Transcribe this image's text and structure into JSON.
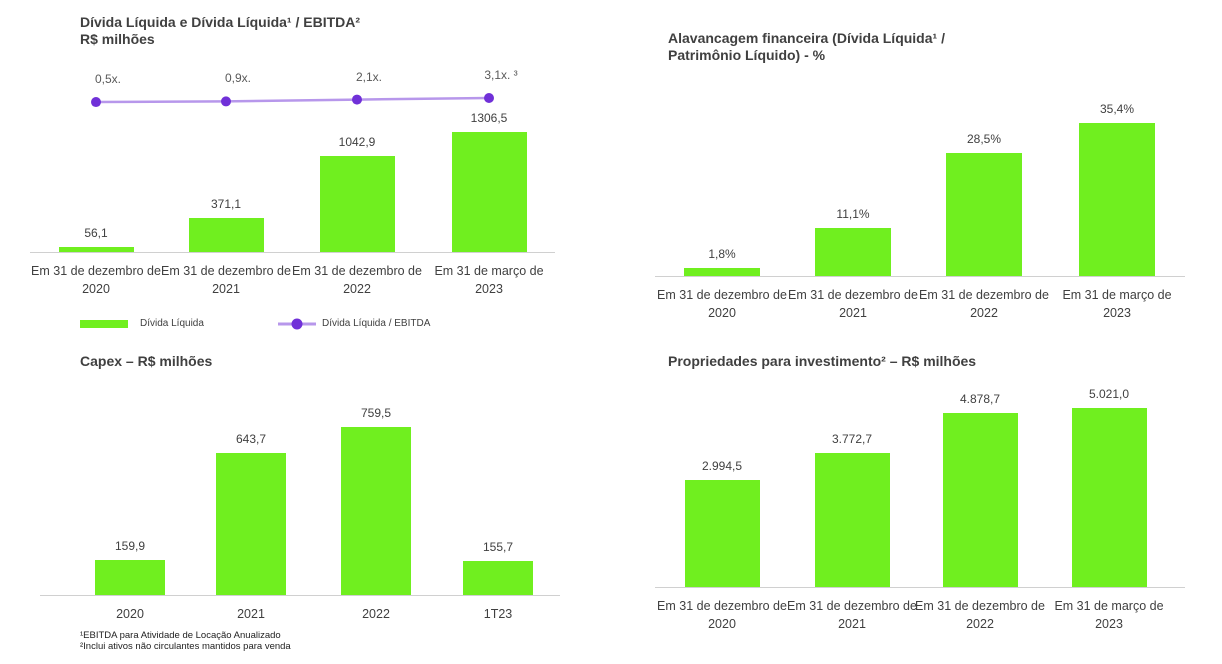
{
  "chart_data": [
    {
      "type": "combo",
      "title": "Dívida Líquida e Dívida Líquida¹ / EBITDA²",
      "subtitle": "R$ milhões",
      "categories": [
        "Em 31 de dezembro de 2020",
        "Em 31 de dezembro de 2021",
        "Em 31 de dezembro de 2022",
        "Em 31 de março de 2023"
      ],
      "series": [
        {
          "name": "Dívida Líquida",
          "color": "#70ef1f",
          "values": [
            56.1,
            371.1,
            1042.9,
            1306.5
          ],
          "value_labels": [
            "56,1",
            "371,1",
            "1042,9",
            "1306,5"
          ]
        },
        {
          "name": "Dívida Líquida / EBITDA",
          "color": "#7030d8",
          "axis": "y2",
          "values": [
            0.5,
            0.9,
            2.1,
            3.1
          ],
          "value_labels": [
            "0,5x.",
            "0,9x.",
            "2,1x.",
            "3,1x. ³"
          ]
        }
      ],
      "ylim": [
        0,
        1400
      ],
      "y2lim": [
        0,
        40
      ],
      "legend": "bottom"
    },
    {
      "type": "bar",
      "title": "Alavancagem financeira (Dívida Líquida¹ / Patrimônio Líquido) - %",
      "categories": [
        "Em 31 de dezembro de 2020",
        "Em 31 de dezembro de 2021",
        "Em 31 de dezembro de 2022",
        "Em 31 de março de 2023"
      ],
      "values": [
        1.8,
        11.1,
        28.5,
        35.4
      ],
      "value_labels": [
        "1,8%",
        "11,1%",
        "28,5%",
        "35,4%"
      ],
      "color": "#70ef1f",
      "ylim": [
        0,
        40
      ]
    },
    {
      "type": "bar",
      "title": "Capex – R$ milhões",
      "categories": [
        "2020",
        "2021",
        "2022",
        "1T23"
      ],
      "values": [
        159.9,
        643.7,
        759.5,
        155.7
      ],
      "value_labels": [
        "159,9",
        "643,7",
        "759,5",
        "155,7"
      ],
      "color": "#70ef1f",
      "ylim": [
        0,
        800
      ],
      "notes": [
        "¹EBITDA para Atividade de Locação  Anualizado",
        "²Inclui ativos não circulantes mantidos para venda"
      ]
    },
    {
      "type": "bar",
      "title": "Propriedades para investimento² – R$ milhões",
      "categories": [
        "Em 31 de dezembro de 2020",
        "Em 31 de dezembro de 2021",
        "Em 31 de dezembro de 2022",
        "Em 31 de março de 2023"
      ],
      "values": [
        2994.5,
        3772.7,
        4878.7,
        5021.0
      ],
      "value_labels": [
        "2.994,5",
        "3.772,7",
        "4.878,7",
        "5.021,0"
      ],
      "color": "#70ef1f",
      "ylim": [
        0,
        5600
      ]
    }
  ]
}
